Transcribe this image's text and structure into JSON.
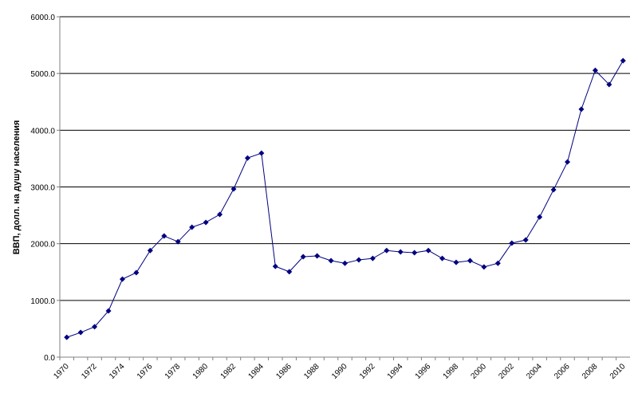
{
  "chart_data": {
    "type": "line",
    "y_label": "ВВП, долл. на душу населения",
    "categories": [
      "1970",
      null,
      "1972",
      null,
      "1974",
      null,
      "1976",
      null,
      "1978",
      null,
      "1980",
      null,
      "1982",
      null,
      "1984",
      null,
      "1986",
      null,
      "1988",
      null,
      "1990",
      null,
      "1992",
      null,
      "1994",
      null,
      "1996",
      null,
      "1998",
      null,
      "2000",
      null,
      "2002",
      null,
      "2004",
      null,
      "2006",
      null,
      "2008",
      null,
      "2010"
    ],
    "series": [
      {
        "color": "#000080",
        "values": [
          350,
          435,
          535,
          815,
          1375,
          1490,
          1880,
          2135,
          2035,
          2290,
          2375,
          2515,
          2965,
          3510,
          3595,
          1600,
          1505,
          1770,
          1785,
          1700,
          1655,
          1715,
          1740,
          1880,
          1855,
          1840,
          1880,
          1740,
          1670,
          1700,
          1590,
          1655,
          2010,
          2065,
          2470,
          2950,
          3440,
          4370,
          5055,
          4805,
          5225
        ]
      }
    ],
    "ylim": [
      0,
      6000
    ],
    "yticks": [
      {
        "value": 0,
        "label": "0.0"
      },
      {
        "value": 1000,
        "label": "1000.0"
      },
      {
        "value": 2000,
        "label": "2000.0"
      },
      {
        "value": 3000,
        "label": "3000.0"
      },
      {
        "value": 4000,
        "label": "4000.0"
      },
      {
        "value": 5000,
        "label": "5000.0"
      },
      {
        "value": 6000,
        "label": "6000.0"
      }
    ],
    "grid": true
  }
}
